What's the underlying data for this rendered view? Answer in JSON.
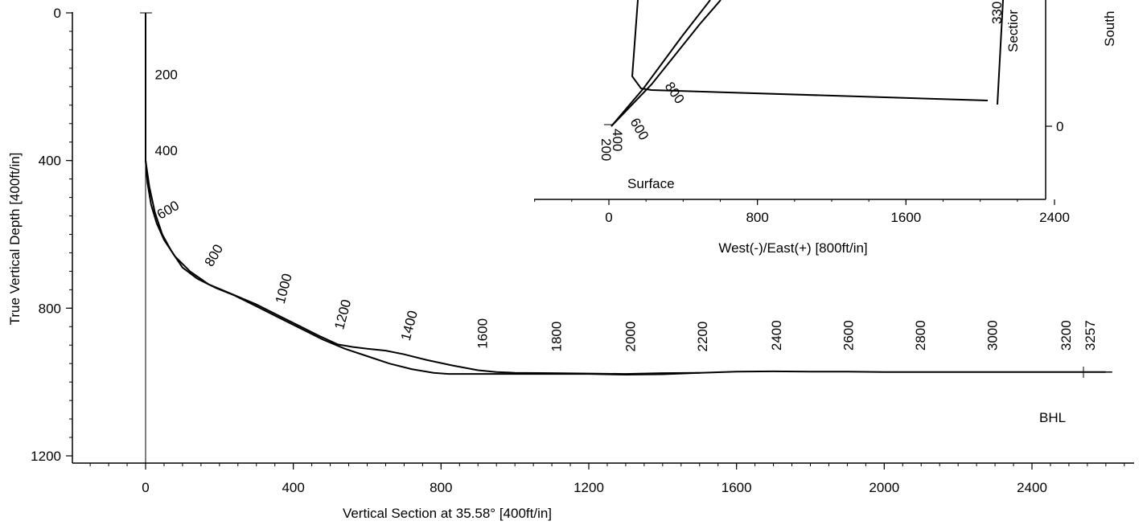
{
  "chart_data": [
    {
      "type": "line",
      "xlabel": "Vertical Section at 35.58° [400ft/in]",
      "ylabel": "True Vertical Depth [400ft/in]",
      "xticks": [
        "0",
        "400",
        "800",
        "1200",
        "1600",
        "2000",
        "2400"
      ],
      "yticks": [
        "0",
        "400",
        "800",
        "1200"
      ],
      "xlim": [
        -200,
        2660
      ],
      "ylim": [
        1200,
        -40
      ],
      "y_inverted": true,
      "grid": false,
      "series": [
        {
          "x": [
            0,
            0,
            0,
            5,
            15,
            30,
            50,
            80,
            120,
            170,
            230,
            300,
            360,
            420,
            470,
            520,
            560,
            600,
            650,
            700,
            760,
            830,
            900,
            950,
            1000,
            1100,
            1200,
            1300,
            1400,
            1500,
            1600,
            1700,
            1800,
            1900,
            2000,
            2100,
            2200,
            2300,
            2400,
            2500,
            2600
          ],
          "y": [
            0,
            200,
            400,
            460,
            520,
            570,
            615,
            660,
            700,
            735,
            760,
            790,
            820,
            850,
            875,
            898,
            905,
            910,
            915,
            925,
            940,
            955,
            968,
            973,
            975,
            976,
            977,
            978,
            976,
            975,
            972,
            971,
            972,
            972,
            973,
            973,
            973,
            973,
            973,
            973,
            973
          ]
        },
        {
          "x": [
            0,
            0,
            0,
            10,
            25,
            45,
            70,
            100,
            140,
            190,
            240,
            300,
            360,
            420,
            480,
            540,
            600,
            660,
            720,
            780,
            820,
            900,
            1000,
            1100,
            1200,
            1300,
            1400,
            1500
          ],
          "y": [
            0,
            200,
            400,
            470,
            540,
            600,
            645,
            690,
            720,
            745,
            765,
            795,
            825,
            855,
            885,
            910,
            930,
            950,
            965,
            975,
            978,
            978,
            978,
            978,
            978,
            980,
            979,
            975
          ]
        }
      ],
      "md_labels": [
        {
          "text": "200",
          "x": 25,
          "y": 180
        },
        {
          "text": "400",
          "x": 25,
          "y": 385
        },
        {
          "text": "600",
          "x": 40,
          "y": 560
        },
        {
          "text": "800",
          "x": 180,
          "y": 690
        },
        {
          "text": "1000",
          "x": 375,
          "y": 790
        },
        {
          "text": "1200",
          "x": 535,
          "y": 860
        },
        {
          "text": "1400",
          "x": 715,
          "y": 890
        },
        {
          "text": "1600",
          "x": 925,
          "y": 910
        },
        {
          "text": "1800",
          "x": 1125,
          "y": 918
        },
        {
          "text": "2000",
          "x": 1325,
          "y": 918
        },
        {
          "text": "2200",
          "x": 1520,
          "y": 918
        },
        {
          "text": "2400",
          "x": 1720,
          "y": 915
        },
        {
          "text": "2600",
          "x": 1915,
          "y": 915
        },
        {
          "text": "2800",
          "x": 2110,
          "y": 915
        },
        {
          "text": "3000",
          "x": 2305,
          "y": 915
        },
        {
          "text": "3200",
          "x": 2505,
          "y": 915
        },
        {
          "text": "3257",
          "x": 2570,
          "y": 915
        }
      ],
      "annotation": "BHL"
    },
    {
      "type": "line",
      "xlabel": "West(-)/East(+) [800ft/in]",
      "ylabel": "South",
      "xticks": [
        "0",
        "800",
        "1600",
        "2400"
      ],
      "yticks": [
        "0"
      ],
      "xlim": [
        -400,
        2370
      ],
      "ylim": [
        -410,
        1050
      ],
      "grid": false,
      "series": [
        {
          "x": [
            0,
            50,
            110,
            170,
            300,
            500,
            700,
            1000,
            1300,
            1600,
            1900,
            2030
          ],
          "y": [
            0,
            60,
            120,
            200,
            230,
            230,
            225,
            220,
            210,
            200,
            190,
            180
          ]
        },
        {
          "x": [
            0,
            60,
            120,
            200,
            260
          ],
          "y": [
            0,
            100,
            200,
            330,
            420
          ]
        }
      ],
      "annotations": [
        "Surface",
        "330",
        "Sectior"
      ],
      "md_labels": [
        "200",
        "400",
        "600",
        "800"
      ]
    }
  ]
}
